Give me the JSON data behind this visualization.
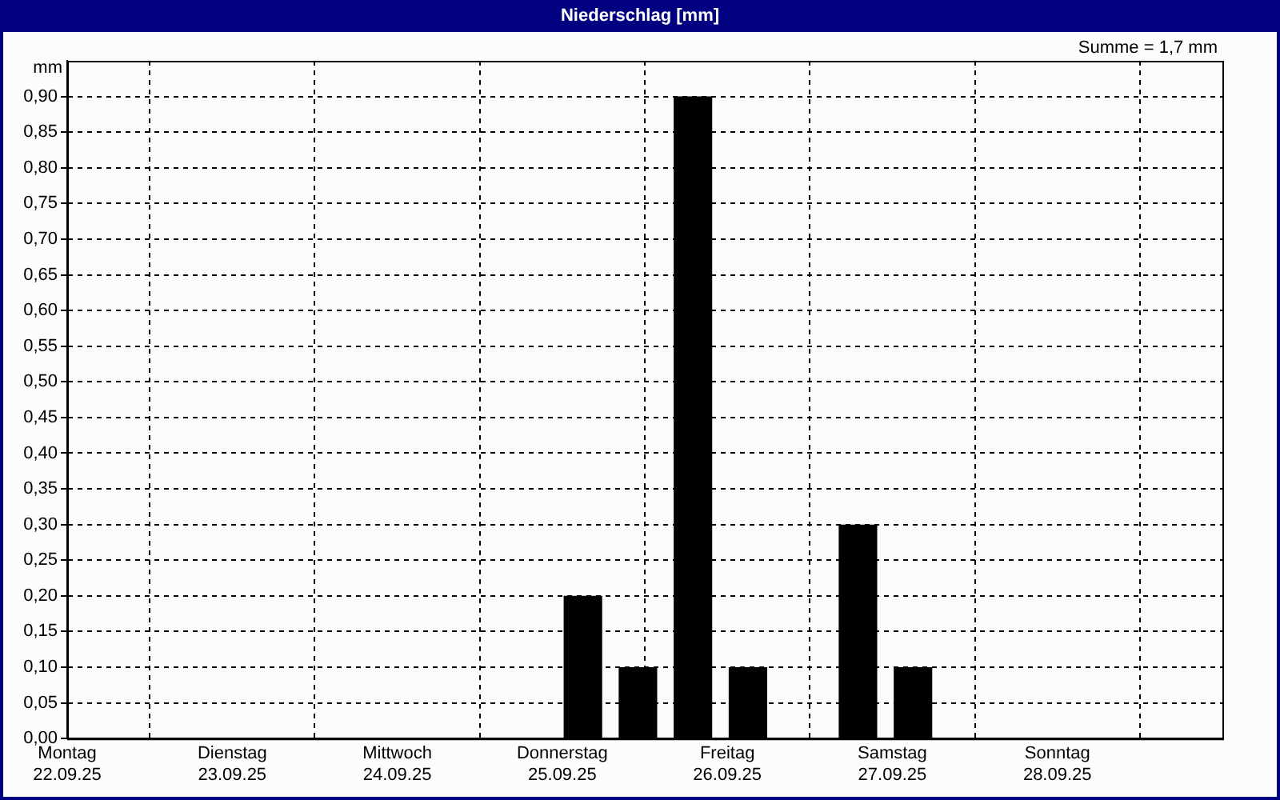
{
  "chart_data": {
    "type": "bar",
    "title": "Niederschlag [mm]",
    "ylabel": "mm",
    "annotations": [
      "Summe = 1,7 mm"
    ],
    "x": [
      "--09-25T03:00",
      "--09-25T11:00",
      "--09-25T19:00",
      "--09-26T03:00",
      "--09-26T19:00",
      "--09-27T03:00"
    ],
    "series": [
      {
        "color": "#000000",
        "values": [
          0.2,
          0.1,
          0.9,
          0.1,
          0.3,
          0.1
        ]
      }
    ],
    "xlim": [
      "--09-22T00:00",
      "--09-29T00:00"
    ],
    "xticks": [
      {
        "value": "--09-22",
        "label": "Montag\n22.09.25"
      },
      {
        "value": "--09-23",
        "label": "Dienstag\n23.09.25"
      },
      {
        "value": "--09-24",
        "label": "Mittwoch\n24.09.25"
      },
      {
        "value": "--09-25",
        "label": "Donnerstag\n25.09.25"
      },
      {
        "value": "--09-26",
        "label": "Freitag\n26.09.25"
      },
      {
        "value": "--09-27",
        "label": "Samstag\n27.09.25"
      },
      {
        "value": "--09-28",
        "label": "Sonntag\n28.09.25"
      }
    ],
    "ylim": [
      0,
      0.95
    ],
    "yticks": [
      {
        "value": 0,
        "label": "0,00"
      },
      {
        "value": 0.05,
        "label": "0,05"
      },
      {
        "value": 0.1,
        "label": "0,10"
      },
      {
        "value": 0.15,
        "label": "0,15"
      },
      {
        "value": 0.2,
        "label": "0,20"
      },
      {
        "value": 0.25,
        "label": "0,25"
      },
      {
        "value": 0.3,
        "label": "0,30"
      },
      {
        "value": 0.35,
        "label": "0,35"
      },
      {
        "value": 0.4,
        "label": "0,40"
      },
      {
        "value": 0.45,
        "label": "0,45"
      },
      {
        "value": 0.5,
        "label": "0,50"
      },
      {
        "value": 0.55,
        "label": "0,55"
      },
      {
        "value": 0.6,
        "label": "0,60"
      },
      {
        "value": 0.65,
        "label": "0,65"
      },
      {
        "value": 0.7,
        "label": "0,70"
      },
      {
        "value": 0.75,
        "label": "0,75"
      },
      {
        "value": 0.8,
        "label": "0,80"
      },
      {
        "value": 0.85,
        "label": "0,85"
      },
      {
        "value": 0.9,
        "label": "0,90"
      }
    ],
    "grid": true,
    "legend": false
  }
}
